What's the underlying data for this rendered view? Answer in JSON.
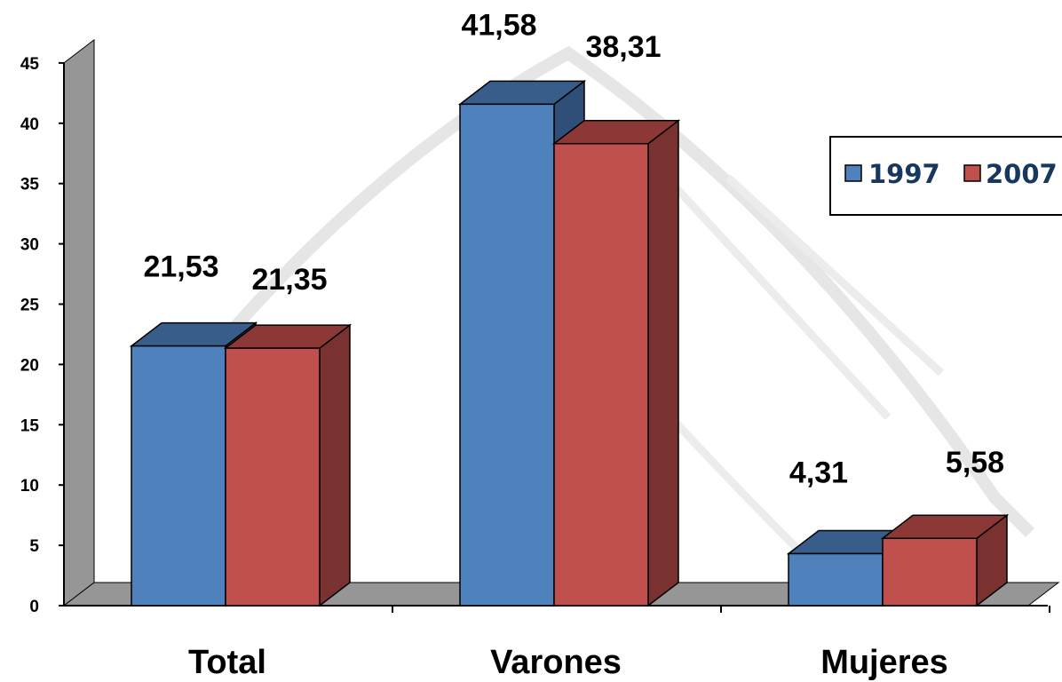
{
  "chart_data": {
    "type": "bar",
    "three_d": true,
    "categories": [
      "Total",
      "Varones",
      "Mujeres"
    ],
    "series": [
      {
        "name": "1997",
        "values": [
          21.53,
          41.58,
          4.31
        ],
        "color": "#4f81bd",
        "top_color": "#385d8a",
        "side_color": "#2f4f78"
      },
      {
        "name": "2007",
        "values": [
          21.35,
          38.31,
          5.58
        ],
        "color": "#c0504d",
        "top_color": "#8c3836",
        "side_color": "#7a3230"
      }
    ],
    "data_labels": [
      [
        "21,53",
        "41,58",
        "4,31"
      ],
      [
        "21,35",
        "38,31",
        "5,58"
      ]
    ],
    "y_ticks": [
      "0",
      "5",
      "10",
      "15",
      "20",
      "25",
      "30",
      "35",
      "40",
      "45"
    ],
    "ylim": [
      0,
      45
    ],
    "legend_position": "right",
    "title": "",
    "xlabel": "",
    "ylabel": ""
  }
}
